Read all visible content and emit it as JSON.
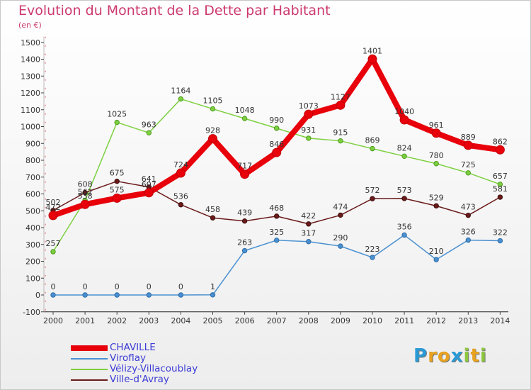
{
  "title": "Evolution du Montant de la Dette par Habitant",
  "unit": "(en €)",
  "logo": {
    "letters": [
      "P",
      "r",
      "o",
      "x",
      "i",
      "t",
      "i"
    ],
    "colors": [
      "#2a9ad6",
      "#e8a21f",
      "#e8a21f",
      "#2a9ad6",
      "#8dc63f",
      "#e8a21f",
      "#8dc63f"
    ]
  },
  "chart_data": {
    "type": "line",
    "title": "Evolution du Montant de la Dette par Habitant",
    "ylabel": "(en €)",
    "xlabel": "",
    "x": [
      "2000",
      "2001",
      "2002",
      "2003",
      "2004",
      "2005",
      "2006",
      "2007",
      "2008",
      "2009",
      "2010",
      "2011",
      "2012",
      "2013",
      "2014"
    ],
    "ylim": [
      -100,
      1500
    ],
    "yticks": [
      "-100",
      "0",
      "100",
      "200",
      "300",
      "400",
      "500",
      "600",
      "700",
      "800",
      "900",
      "1000",
      "1100",
      "1200",
      "1300",
      "1400",
      "1500"
    ],
    "grid": false,
    "legend_position": "bottom-left",
    "series": [
      {
        "name": "CHAVILLE",
        "color": "#e8000b",
        "values": [
          472,
          538,
          575,
          607,
          724,
          928,
          717,
          846,
          1073,
          1127,
          1401,
          1040,
          961,
          889,
          862
        ],
        "labels": [
          "472",
          "538",
          "575",
          "607",
          "724",
          "928",
          "717",
          "846",
          "1073",
          "1127",
          "1401",
          "1040",
          "961",
          "889",
          "862"
        ]
      },
      {
        "name": "Viroflay",
        "color": "#4a90d0",
        "values": [
          0,
          0,
          0,
          0,
          0,
          1,
          263,
          325,
          317,
          290,
          223,
          356,
          210,
          326,
          322
        ],
        "labels": [
          "0",
          "0",
          "0",
          "0",
          "0",
          "1",
          "263",
          "325",
          "317",
          "290",
          "223",
          "356",
          "210",
          "326",
          "322"
        ]
      },
      {
        "name": "Vélizy-Villacoublay",
        "color": "#7ed040",
        "values": [
          257,
          562,
          1025,
          963,
          1164,
          1105,
          1048,
          990,
          931,
          915,
          869,
          824,
          780,
          725,
          657
        ],
        "labels": [
          "257",
          "562",
          "1025",
          "963",
          "1164",
          "1105",
          "1048",
          "990",
          "931",
          "915",
          "869",
          "824",
          "780",
          "725",
          "657"
        ]
      },
      {
        "name": "Ville-d'Avray",
        "color": "#6a1a1a",
        "values": [
          502,
          608,
          675,
          641,
          536,
          458,
          439,
          468,
          422,
          474,
          572,
          573,
          529,
          473,
          581
        ],
        "labels": [
          "502",
          "608",
          "675",
          "641",
          "536",
          "458",
          "439",
          "468",
          "422",
          "474",
          "572",
          "573",
          "529",
          "473",
          "581"
        ]
      }
    ]
  }
}
